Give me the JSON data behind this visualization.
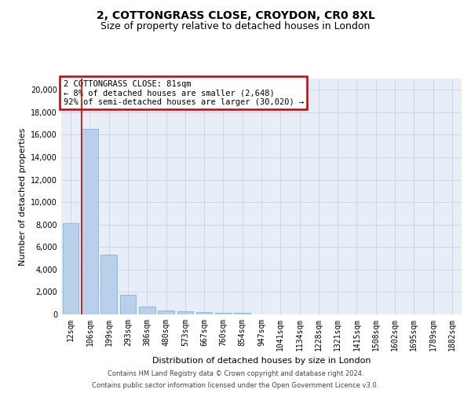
{
  "title": "2, COTTONGRASS CLOSE, CROYDON, CR0 8XL",
  "subtitle": "Size of property relative to detached houses in London",
  "xlabel": "Distribution of detached houses by size in London",
  "ylabel": "Number of detached properties",
  "footer_line1": "Contains HM Land Registry data © Crown copyright and database right 2024.",
  "footer_line2": "Contains public sector information licensed under the Open Government Licence v3.0.",
  "annotation_line1": "2 COTTONGRASS CLOSE: 81sqm",
  "annotation_line2": "← 8% of detached houses are smaller (2,648)",
  "annotation_line3": "92% of semi-detached houses are larger (30,020) →",
  "bar_labels": [
    "12sqm",
    "106sqm",
    "199sqm",
    "293sqm",
    "386sqm",
    "480sqm",
    "573sqm",
    "667sqm",
    "760sqm",
    "854sqm",
    "947sqm",
    "1041sqm",
    "1134sqm",
    "1228sqm",
    "1321sqm",
    "1415sqm",
    "1508sqm",
    "1602sqm",
    "1695sqm",
    "1789sqm",
    "1882sqm"
  ],
  "bar_values": [
    8100,
    16500,
    5300,
    1750,
    700,
    350,
    270,
    200,
    170,
    150,
    0,
    0,
    0,
    0,
    0,
    0,
    0,
    0,
    0,
    0,
    0
  ],
  "bar_color": "#b8d0ea",
  "bar_edge_color": "#6baed6",
  "grid_color": "#c8d4e4",
  "background_color": "#e8eef8",
  "annotation_box_edgecolor": "#cc0000",
  "vertical_line_color": "#cc0000",
  "ylim": [
    0,
    21000
  ],
  "yticks": [
    0,
    2000,
    4000,
    6000,
    8000,
    10000,
    12000,
    14000,
    16000,
    18000,
    20000
  ],
  "title_fontsize": 10,
  "subtitle_fontsize": 9,
  "axis_label_fontsize": 8,
  "tick_fontsize": 7,
  "annotation_fontsize": 7.5,
  "footer_fontsize": 6
}
